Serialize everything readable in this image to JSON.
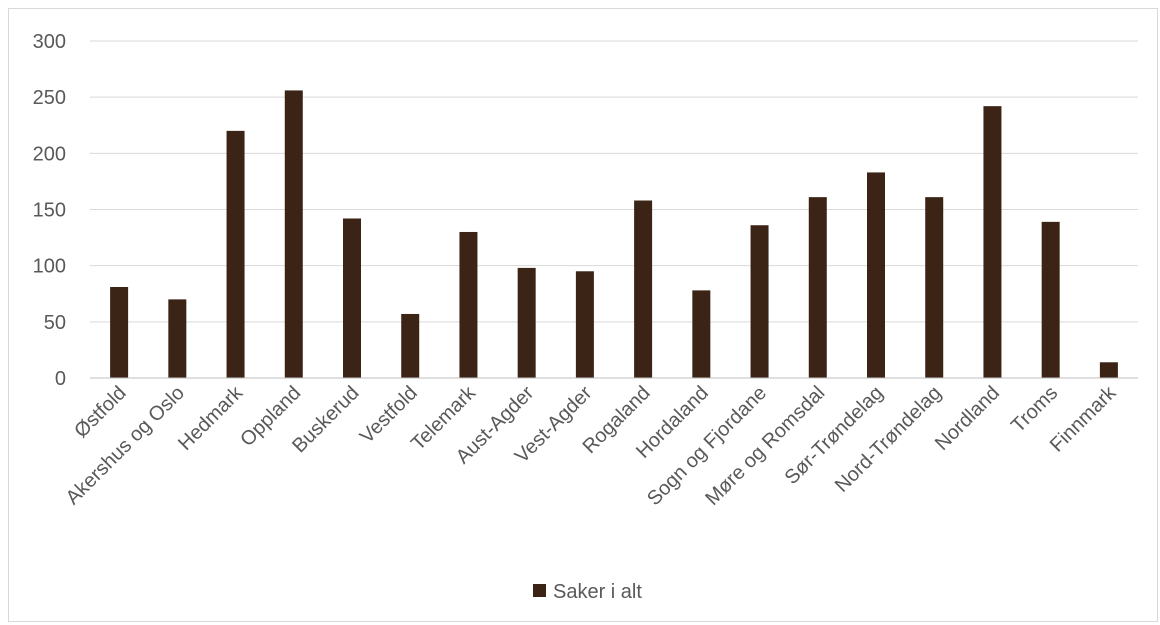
{
  "chart_data": {
    "type": "bar",
    "categories": [
      "Østfold",
      "Akershus og Oslo",
      "Hedmark",
      "Oppland",
      "Buskerud",
      "Vestfold",
      "Telemark",
      "Aust-Agder",
      "Vest-Agder",
      "Rogaland",
      "Hordaland",
      "Sogn og Fjordane",
      "Møre og Romsdal",
      "Sør-Trøndelag",
      "Nord-Trøndelag",
      "Nordland",
      "Troms",
      "Finnmark"
    ],
    "series": [
      {
        "name": "Saker i alt",
        "values": [
          81,
          70,
          220,
          256,
          142,
          57,
          130,
          98,
          95,
          158,
          78,
          136,
          161,
          183,
          161,
          242,
          139,
          14
        ]
      }
    ],
    "yticks": [
      "0",
      "50",
      "100",
      "150",
      "200",
      "250",
      "300"
    ],
    "ylim": [
      0,
      300
    ],
    "grid": true,
    "legend": "bottom",
    "bar_color": "#3b2416",
    "grid_color": "#d9d9d9",
    "axis_color": "#bfbfbf"
  }
}
